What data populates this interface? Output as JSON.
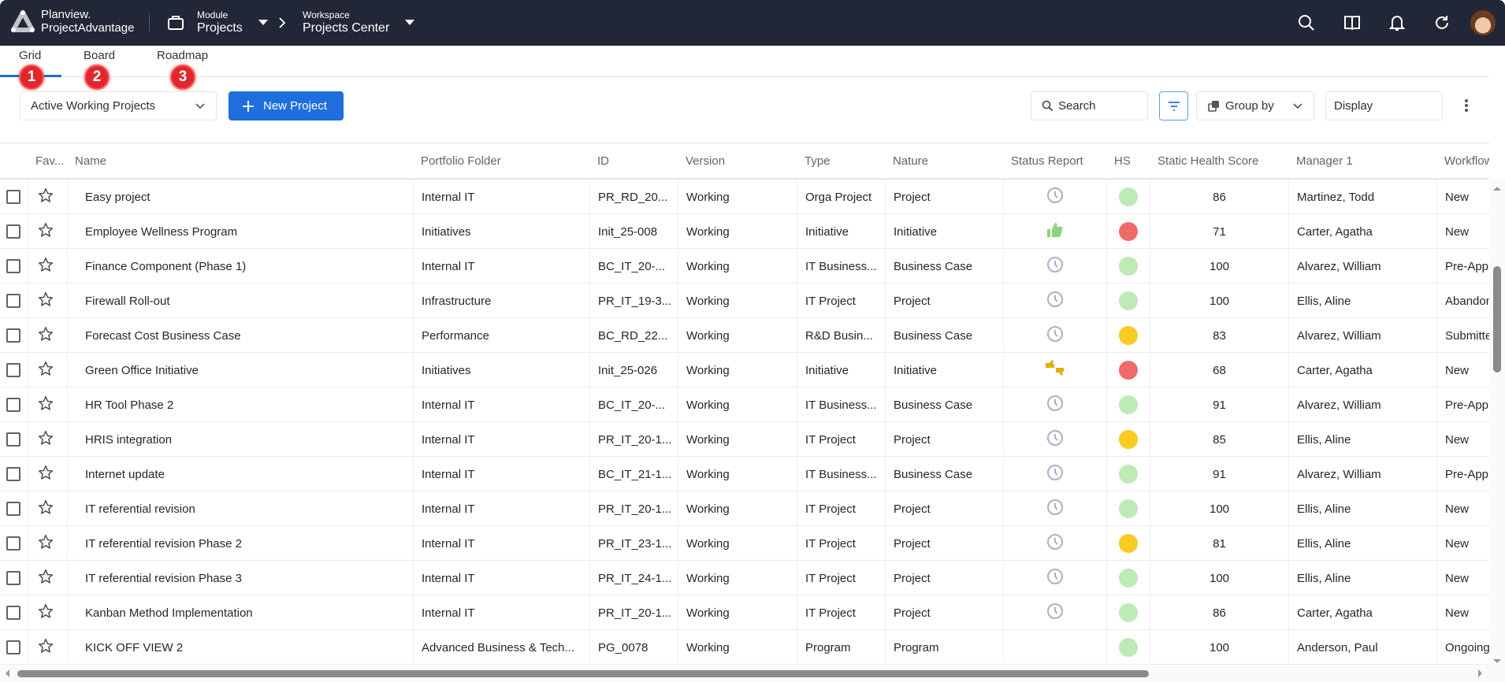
{
  "header": {
    "brand_line1": "Planview.",
    "brand_line2": "ProjectAdvantage",
    "module_label": "Module",
    "module_value": "Projects",
    "workspace_label": "Workspace",
    "workspace_value": "Projects Center"
  },
  "tabs": [
    {
      "label": "Grid",
      "active": true
    },
    {
      "label": "Board"
    },
    {
      "label": "Roadmap"
    }
  ],
  "badges": [
    "1",
    "2",
    "3"
  ],
  "toolbar": {
    "view": "Active Working Projects",
    "new_project": "New Project",
    "search_placeholder": "Search",
    "group_by": "Group by",
    "display": "Display"
  },
  "colors": {
    "accent": "#1e6fdc",
    "header_bg": "#222737",
    "hs_green": "#bdeab5",
    "hs_red": "#f06a6a",
    "hs_yellow": "#fdca22",
    "thumb_up": "#8ad47a",
    "thumbs_mixed": "#e3ad00",
    "clock": "#a8b2c2"
  },
  "columns": [
    "Fav...",
    "Name",
    "Portfolio Folder",
    "ID",
    "Version",
    "Type",
    "Nature",
    "Status Report",
    "HS",
    "Static Health Score",
    "Manager 1",
    "Workflow"
  ],
  "rows": [
    {
      "name": "Easy project",
      "folder": "Internal IT",
      "id": "PR_RD_20...",
      "version": "Working",
      "type": "Orga Project",
      "nature": "Project",
      "status": "clock",
      "hs": "green",
      "score": "86",
      "manager": "Martinez, Todd",
      "workflow": "New"
    },
    {
      "name": "Employee Wellness Program",
      "folder": "Initiatives",
      "id": "Init_25-008",
      "version": "Working",
      "type": "Initiative",
      "nature": "Initiative",
      "status": "thumb-up",
      "hs": "red",
      "score": "71",
      "manager": "Carter, Agatha",
      "workflow": "New"
    },
    {
      "name": "Finance Component (Phase 1)",
      "folder": "Internal IT",
      "id": "BC_IT_20-...",
      "version": "Working",
      "type": "IT Business...",
      "nature": "Business Case",
      "status": "clock",
      "hs": "green",
      "score": "100",
      "manager": "Alvarez, William",
      "workflow": "Pre-App"
    },
    {
      "name": "Firewall Roll-out",
      "folder": "Infrastructure",
      "id": "PR_IT_19-3...",
      "version": "Working",
      "type": "IT Project",
      "nature": "Project",
      "status": "clock",
      "hs": "green",
      "score": "100",
      "manager": "Ellis, Aline",
      "workflow": "Abandon"
    },
    {
      "name": "Forecast Cost Business Case",
      "folder": "Performance",
      "id": "BC_RD_22...",
      "version": "Working",
      "type": "R&D Busin...",
      "nature": "Business Case",
      "status": "clock",
      "hs": "yellow",
      "score": "83",
      "manager": "Alvarez, William",
      "workflow": "Submitte"
    },
    {
      "name": "Green Office Initiative",
      "folder": "Initiatives",
      "id": "Init_25-026",
      "version": "Working",
      "type": "Initiative",
      "nature": "Initiative",
      "status": "thumbs-mixed",
      "hs": "red",
      "score": "68",
      "manager": "Carter, Agatha",
      "workflow": "New"
    },
    {
      "name": "HR Tool Phase 2",
      "folder": "Internal IT",
      "id": "BC_IT_20-...",
      "version": "Working",
      "type": "IT Business...",
      "nature": "Business Case",
      "status": "clock",
      "hs": "green",
      "score": "91",
      "manager": "Alvarez, William",
      "workflow": "Pre-App"
    },
    {
      "name": "HRIS integration",
      "folder": "Internal IT",
      "id": "PR_IT_20-1...",
      "version": "Working",
      "type": "IT Project",
      "nature": "Project",
      "status": "clock",
      "hs": "yellow",
      "score": "85",
      "manager": "Ellis, Aline",
      "workflow": "New"
    },
    {
      "name": "Internet update",
      "folder": "Internal IT",
      "id": "BC_IT_21-1...",
      "version": "Working",
      "type": "IT Business...",
      "nature": "Business Case",
      "status": "clock",
      "hs": "green",
      "score": "91",
      "manager": "Alvarez, William",
      "workflow": "Pre-App"
    },
    {
      "name": "IT referential revision",
      "folder": "Internal IT",
      "id": "PR_IT_20-1...",
      "version": "Working",
      "type": "IT Project",
      "nature": "Project",
      "status": "clock",
      "hs": "green",
      "score": "100",
      "manager": "Ellis, Aline",
      "workflow": "New"
    },
    {
      "name": "IT referential revision Phase 2",
      "folder": "Internal IT",
      "id": "PR_IT_23-1...",
      "version": "Working",
      "type": "IT Project",
      "nature": "Project",
      "status": "clock",
      "hs": "yellow",
      "score": "81",
      "manager": "Ellis, Aline",
      "workflow": "New"
    },
    {
      "name": "IT referential revision Phase 3",
      "folder": "Internal IT",
      "id": "PR_IT_24-1...",
      "version": "Working",
      "type": "IT Project",
      "nature": "Project",
      "status": "clock",
      "hs": "green",
      "score": "100",
      "manager": "Ellis, Aline",
      "workflow": "New"
    },
    {
      "name": "Kanban Method Implementation",
      "folder": "Internal IT",
      "id": "PR_IT_20-1...",
      "version": "Working",
      "type": "IT Project",
      "nature": "Project",
      "status": "clock",
      "hs": "green",
      "score": "86",
      "manager": "Carter, Agatha",
      "workflow": "New"
    },
    {
      "name": "KICK OFF VIEW 2",
      "folder": "Advanced Business & Tech...",
      "id": "PG_0078",
      "version": "Working",
      "type": "Program",
      "nature": "Program",
      "status": "",
      "hs": "green",
      "score": "100",
      "manager": "Anderson, Paul",
      "workflow": "Ongoing"
    }
  ]
}
